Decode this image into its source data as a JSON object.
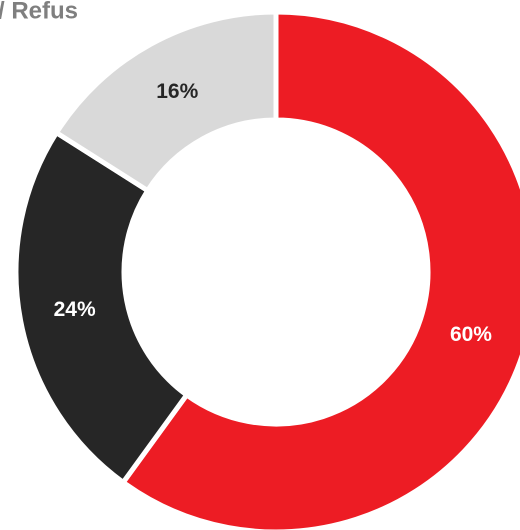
{
  "chart_data": {
    "type": "donut",
    "title": "/ Refus",
    "values": [
      60,
      24,
      16
    ],
    "value_labels": [
      "60%",
      "24%",
      "16%"
    ],
    "colors": [
      "#ed1c24",
      "#262626",
      "#d9d9d9"
    ]
  }
}
